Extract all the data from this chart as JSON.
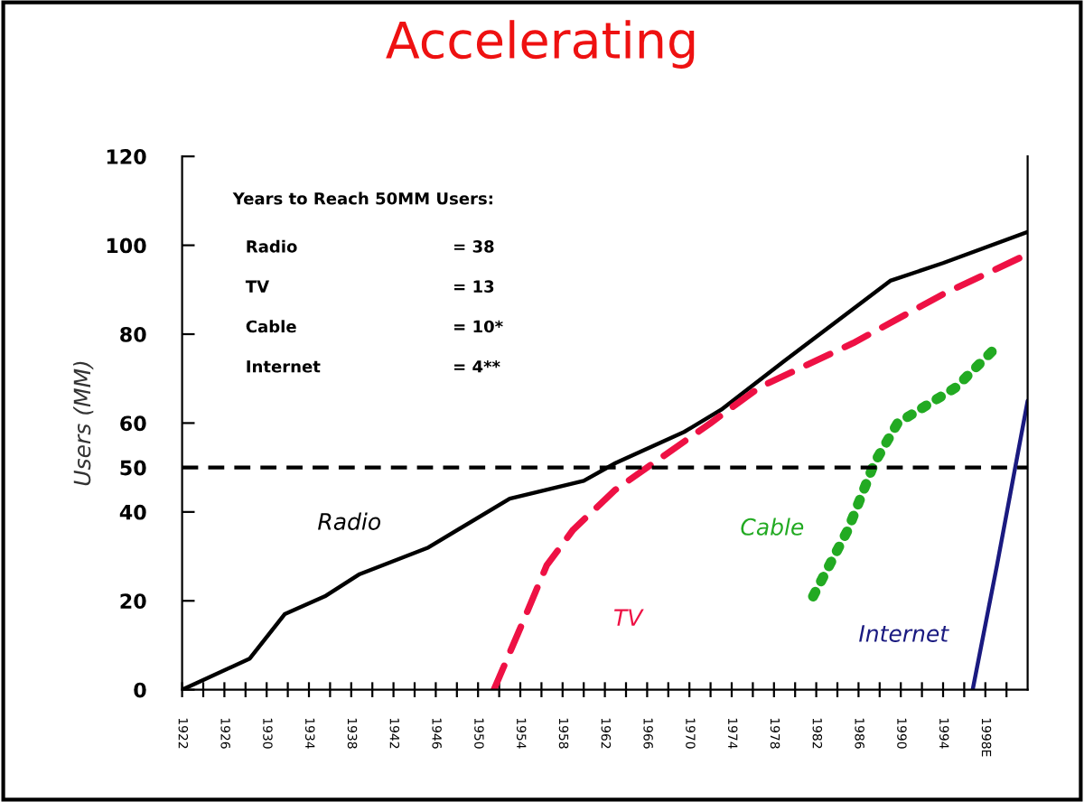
{
  "chart_data": {
    "type": "line",
    "title": "Accelerating",
    "ylabel": "Users (MM)",
    "xlim": [
      1922,
      2002
    ],
    "ylim": [
      0,
      120
    ],
    "xticks": [
      {
        "value": 1922,
        "label": "1922"
      },
      {
        "value": 1924,
        "label": null
      },
      {
        "value": 1926,
        "label": "1926"
      },
      {
        "value": 1928,
        "label": null
      },
      {
        "value": 1930,
        "label": "1930"
      },
      {
        "value": 1932,
        "label": null
      },
      {
        "value": 1934,
        "label": "1934"
      },
      {
        "value": 1936,
        "label": null
      },
      {
        "value": 1938,
        "label": "1938"
      },
      {
        "value": 1940,
        "label": null
      },
      {
        "value": 1942,
        "label": "1942"
      },
      {
        "value": 1944,
        "label": null
      },
      {
        "value": 1946,
        "label": "1946"
      },
      {
        "value": 1948,
        "label": null
      },
      {
        "value": 1950,
        "label": "1950"
      },
      {
        "value": 1952,
        "label": null
      },
      {
        "value": 1954,
        "label": "1954"
      },
      {
        "value": 1956,
        "label": null
      },
      {
        "value": 1958,
        "label": "1958"
      },
      {
        "value": 1960,
        "label": null
      },
      {
        "value": 1962,
        "label": "1962"
      },
      {
        "value": 1964,
        "label": null
      },
      {
        "value": 1966,
        "label": "1966"
      },
      {
        "value": 1968,
        "label": null
      },
      {
        "value": 1970,
        "label": "1970"
      },
      {
        "value": 1972,
        "label": null
      },
      {
        "value": 1974,
        "label": "1974"
      },
      {
        "value": 1976,
        "label": null
      },
      {
        "value": 1978,
        "label": "1978"
      },
      {
        "value": 1980,
        "label": null
      },
      {
        "value": 1982,
        "label": "1982"
      },
      {
        "value": 1984,
        "label": null
      },
      {
        "value": 1986,
        "label": "1986"
      },
      {
        "value": 1988,
        "label": null
      },
      {
        "value": 1990,
        "label": "1990"
      },
      {
        "value": 1992,
        "label": null
      },
      {
        "value": 1994,
        "label": "1994"
      },
      {
        "value": 1996,
        "label": null
      },
      {
        "value": 1998,
        "label": "1998E"
      },
      {
        "value": 2000,
        "label": null
      }
    ],
    "yticks": [
      0,
      20,
      40,
      50,
      60,
      80,
      100,
      120
    ],
    "grid": false,
    "legend": false,
    "marker": "none",
    "series": [
      {
        "name": "Radio",
        "color": "#000000",
        "line_style": "solid",
        "x": [
          1922,
          1928.4,
          1931.7,
          1935.5,
          1938.8,
          1945.3,
          1953,
          1960,
          1963,
          1969.5,
          1973,
          1979,
          1989,
          1994,
          2002
        ],
        "values": [
          0,
          7,
          17,
          21,
          26,
          32,
          43,
          47,
          51,
          58,
          63,
          74,
          92,
          96,
          103
        ]
      },
      {
        "name": "TV",
        "color": "#ee1144",
        "line_style": "dashed",
        "x": [
          1951.5,
          1954.2,
          1956.5,
          1959,
          1963,
          1966.6,
          1972,
          1976.6,
          1985.5,
          1994,
          2002
        ],
        "values": [
          0,
          15,
          28,
          36,
          45,
          51,
          60,
          68,
          78,
          89,
          98
        ]
      },
      {
        "name": "Cable",
        "color": "#22aa22",
        "line_style": "dotted",
        "x": [
          1981.7,
          1985,
          1987.5,
          1989.7,
          1995.2,
          1999
        ],
        "values": [
          21,
          36,
          51,
          60,
          68,
          77
        ]
      },
      {
        "name": "Internet",
        "color": "#1a1a80",
        "line_style": "solid",
        "x": [
          1996.8,
          1999.1,
          2002
        ],
        "values": [
          0,
          28,
          65
        ]
      }
    ],
    "ref_lines": [
      {
        "axis": "y",
        "value": 50,
        "color": "#000000",
        "line_style": "dashed"
      }
    ],
    "annotations": [
      "Years to Reach 50MM Users:",
      "Radio",
      "= 38",
      "TV",
      "= 13",
      "Cable",
      "= 10*",
      "Internet",
      "= 4**"
    ]
  }
}
